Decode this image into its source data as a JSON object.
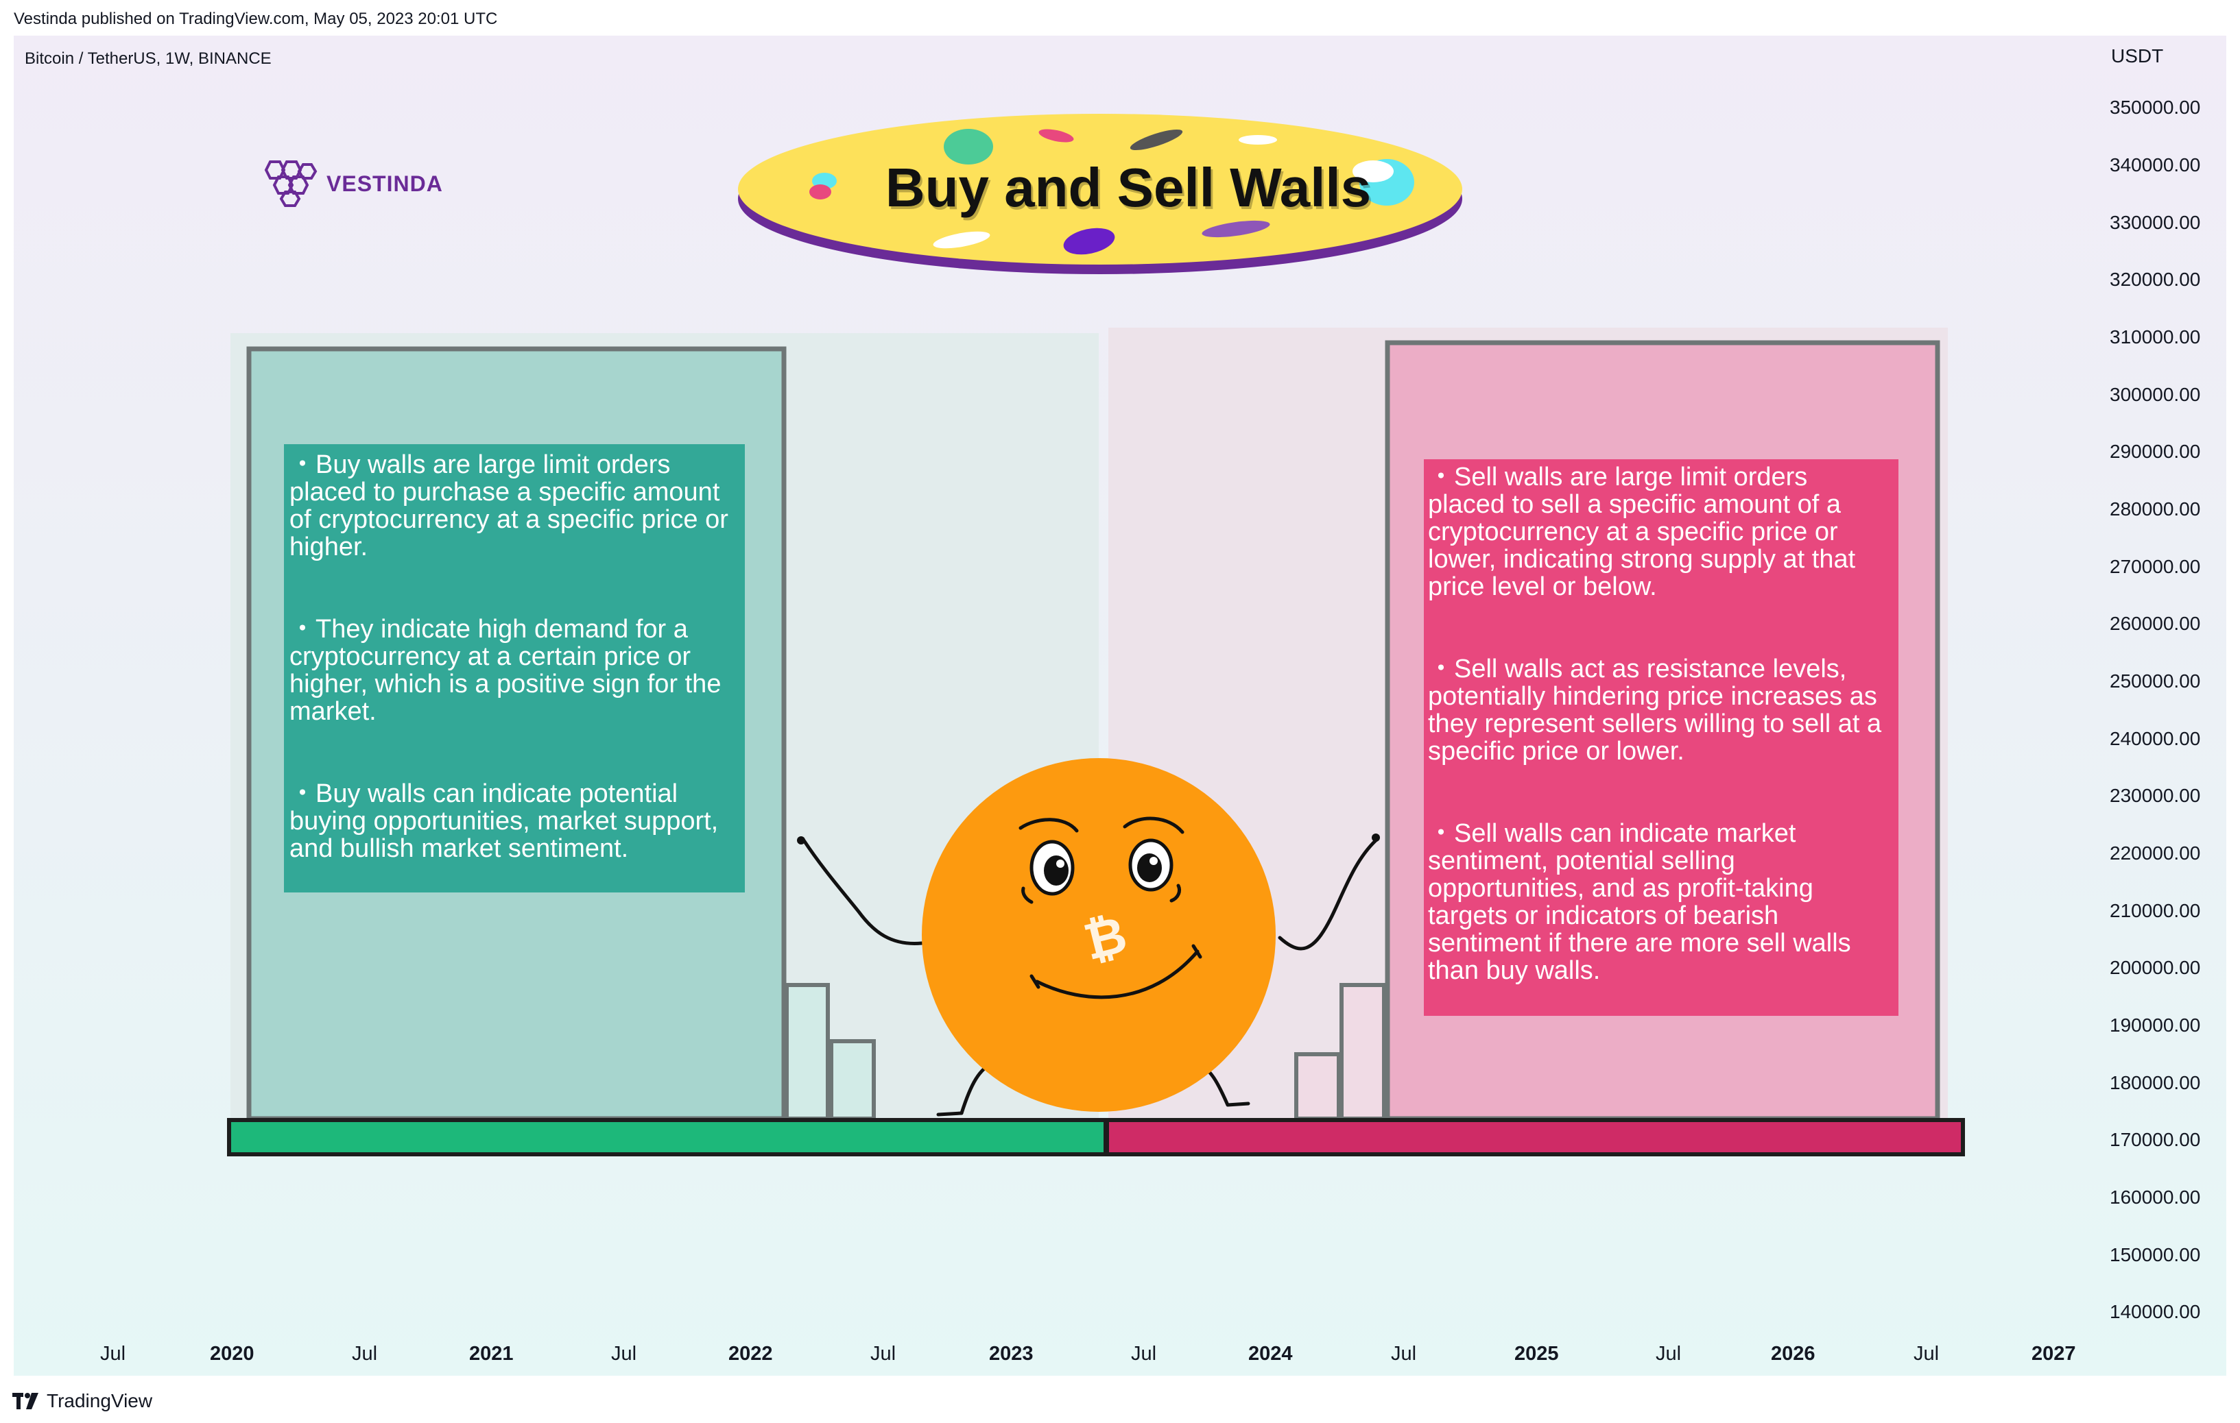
{
  "header": {
    "published_by": "Vestinda published on TradingView.com, May 05, 2023 20:01 UTC"
  },
  "chart": {
    "symbol_info": "Bitcoin / TetherUS, 1W, BINANCE",
    "currency": "USDT",
    "y_axis_ticks": [
      "350000.00",
      "340000.00",
      "330000.00",
      "320000.00",
      "310000.00",
      "300000.00",
      "290000.00",
      "280000.00",
      "270000.00",
      "260000.00",
      "250000.00",
      "240000.00",
      "230000.00",
      "220000.00",
      "210000.00",
      "200000.00",
      "190000.00",
      "180000.00",
      "170000.00",
      "160000.00",
      "150000.00",
      "140000.00"
    ],
    "x_axis_ticks": [
      {
        "label": "Jul",
        "bold": false
      },
      {
        "label": "2020",
        "bold": true
      },
      {
        "label": "Jul",
        "bold": false
      },
      {
        "label": "2021",
        "bold": true
      },
      {
        "label": "Jul",
        "bold": false
      },
      {
        "label": "2022",
        "bold": true
      },
      {
        "label": "Jul",
        "bold": false
      },
      {
        "label": "2023",
        "bold": true
      },
      {
        "label": "Jul",
        "bold": false
      },
      {
        "label": "2024",
        "bold": true
      },
      {
        "label": "Jul",
        "bold": false
      },
      {
        "label": "2025",
        "bold": true
      },
      {
        "label": "Jul",
        "bold": false
      },
      {
        "label": "2026",
        "bold": true
      },
      {
        "label": "Jul",
        "bold": false
      },
      {
        "label": "2027",
        "bold": true
      }
    ]
  },
  "branding": {
    "vestinda_name": "VESTINDA",
    "footer_name": "TradingView"
  },
  "banner": {
    "title": "Buy and Sell Walls"
  },
  "buy_walls": {
    "points": [
      "・Buy walls are large limit orders placed to purchase a specific amount of cryptocurrency at a specific price or higher.",
      "・They indicate high demand for a cryptocurrency at a certain price or higher, which is a positive sign for the market.",
      "・Buy walls can indicate potential buying opportunities, market support, and bullish market sentiment."
    ]
  },
  "sell_walls": {
    "points": [
      "・Sell walls are large limit orders placed to sell a specific amount of a cryptocurrency at a specific price or lower, indicating strong supply at that price level or below.",
      "・Sell walls act as resistance levels, potentially hindering price increases as they represent sellers willing to sell at a specific price or lower.",
      "・Sell walls can indicate market sentiment, potential selling opportunities, and as profit-taking targets or indicators of bearish sentiment if there are more sell walls than buy walls."
    ]
  },
  "colors": {
    "buy_green": "#1db87a",
    "sell_pink": "#cf2b66",
    "buy_textbox": "#33a897",
    "sell_textbox": "#e8487e",
    "banner_yellow": "#fde15a",
    "banner_purple": "#6a2b97",
    "coin_orange": "#fd9a0f"
  },
  "icons": {
    "vestinda_logo": "hexagon-cluster-icon",
    "tradingview_logo": "tradingview-icon",
    "mascot": "bitcoin-mascot-icon"
  }
}
